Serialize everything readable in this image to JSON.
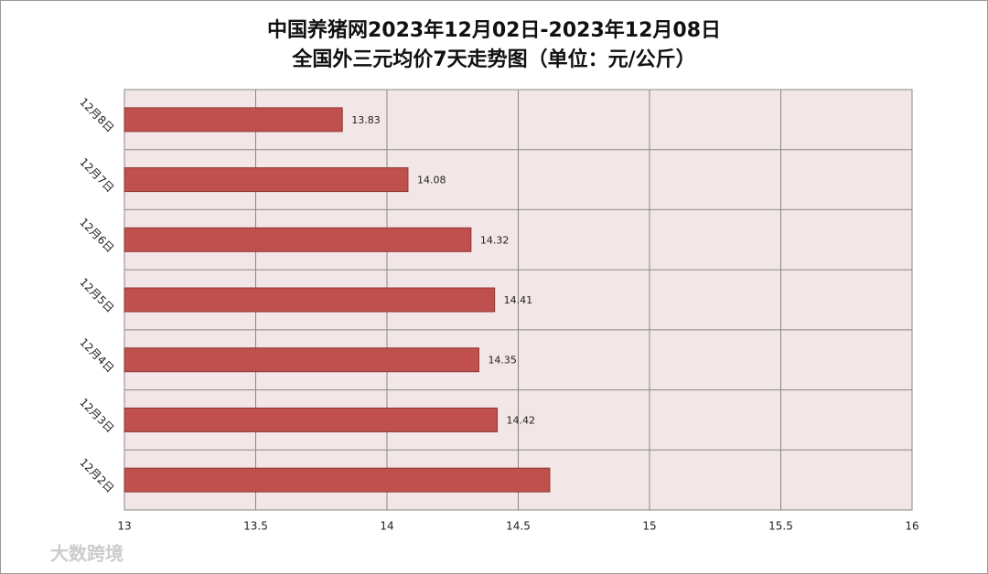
{
  "chart_data": {
    "type": "hbar",
    "title": "中国养猪网2023年12月02日-2023年12月08日",
    "subtitle": "全国外三元均价7天走势图（单位：元/公斤）",
    "categories": [
      "12月8日",
      "12月7日",
      "12月6日",
      "12月5日",
      "12月4日",
      "12月3日",
      "12月2日"
    ],
    "values": [
      13.83,
      14.08,
      14.32,
      14.41,
      14.35,
      14.42,
      14.62
    ],
    "value_labels": [
      "13.83",
      "14.08",
      "14.32",
      "14.41",
      "14.35",
      "14.42",
      null
    ],
    "color": "#c0504d",
    "xlim": [
      13,
      16
    ],
    "xticks": [
      13,
      13.5,
      14,
      14.5,
      15,
      15.5,
      16
    ],
    "grid": true,
    "watermark": "大数跨境"
  }
}
